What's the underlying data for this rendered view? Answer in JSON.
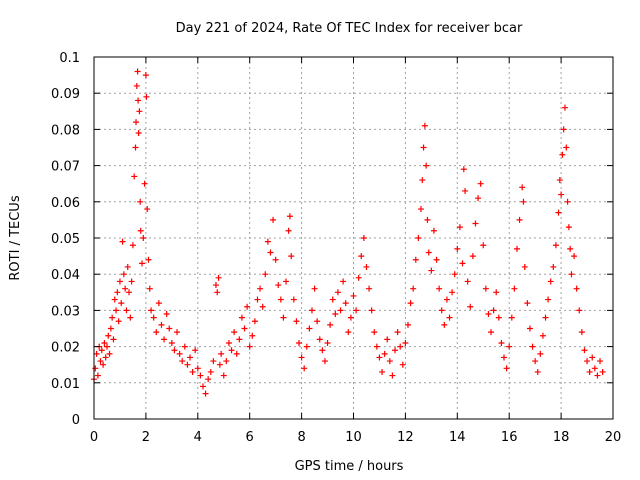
{
  "chart_data": {
    "type": "scatter",
    "title": "Day 221 of 2024, Rate Of TEC Index for receiver bcar",
    "xlabel": "GPS time / hours",
    "ylabel": "ROTI / TECUs",
    "xlim": [
      0,
      20
    ],
    "ylim": [
      0,
      0.1
    ],
    "x_ticks": [
      "0",
      "2",
      "4",
      "6",
      "8",
      "10",
      "12",
      "14",
      "16",
      "18",
      "20"
    ],
    "y_ticks": [
      "0",
      "0.01",
      "0.02",
      "0.03",
      "0.04",
      "0.05",
      "0.06",
      "0.07",
      "0.08",
      "0.09",
      "0.1"
    ],
    "grid": true,
    "marker": "+",
    "color": "#ff0000",
    "series": [
      {
        "points": [
          [
            0.0,
            0.011
          ],
          [
            0.05,
            0.014
          ],
          [
            0.1,
            0.018
          ],
          [
            0.15,
            0.012
          ],
          [
            0.2,
            0.02
          ],
          [
            0.25,
            0.016
          ],
          [
            0.3,
            0.019
          ],
          [
            0.35,
            0.015
          ],
          [
            0.4,
            0.021
          ],
          [
            0.45,
            0.017
          ],
          [
            0.5,
            0.02
          ],
          [
            0.55,
            0.023
          ],
          [
            0.6,
            0.018
          ],
          [
            0.65,
            0.025
          ],
          [
            0.7,
            0.028
          ],
          [
            0.75,
            0.022
          ],
          [
            0.8,
            0.033
          ],
          [
            0.85,
            0.03
          ],
          [
            0.9,
            0.035
          ],
          [
            0.95,
            0.027
          ],
          [
            1.0,
            0.038
          ],
          [
            1.05,
            0.032
          ],
          [
            1.1,
            0.049
          ],
          [
            1.15,
            0.04
          ],
          [
            1.2,
            0.036
          ],
          [
            1.25,
            0.03
          ],
          [
            1.3,
            0.042
          ],
          [
            1.35,
            0.035
          ],
          [
            1.4,
            0.028
          ],
          [
            1.45,
            0.038
          ],
          [
            1.5,
            0.048
          ],
          [
            1.55,
            0.067
          ],
          [
            1.6,
            0.075
          ],
          [
            1.62,
            0.082
          ],
          [
            1.65,
            0.092
          ],
          [
            1.68,
            0.096
          ],
          [
            1.7,
            0.088
          ],
          [
            1.72,
            0.079
          ],
          [
            1.75,
            0.085
          ],
          [
            1.78,
            0.06
          ],
          [
            1.8,
            0.052
          ],
          [
            1.85,
            0.043
          ],
          [
            1.9,
            0.05
          ],
          [
            1.95,
            0.065
          ],
          [
            2.0,
            0.095
          ],
          [
            2.02,
            0.089
          ],
          [
            2.05,
            0.058
          ],
          [
            2.1,
            0.044
          ],
          [
            2.15,
            0.036
          ],
          [
            2.2,
            0.03
          ],
          [
            2.3,
            0.028
          ],
          [
            2.4,
            0.024
          ],
          [
            2.5,
            0.032
          ],
          [
            2.6,
            0.026
          ],
          [
            2.7,
            0.022
          ],
          [
            2.8,
            0.029
          ],
          [
            2.9,
            0.025
          ],
          [
            3.0,
            0.021
          ],
          [
            3.1,
            0.019
          ],
          [
            3.2,
            0.024
          ],
          [
            3.3,
            0.018
          ],
          [
            3.4,
            0.016
          ],
          [
            3.5,
            0.02
          ],
          [
            3.6,
            0.015
          ],
          [
            3.7,
            0.017
          ],
          [
            3.8,
            0.013
          ],
          [
            3.9,
            0.019
          ],
          [
            4.0,
            0.014
          ],
          [
            4.1,
            0.012
          ],
          [
            4.2,
            0.009
          ],
          [
            4.3,
            0.007
          ],
          [
            4.4,
            0.011
          ],
          [
            4.5,
            0.013
          ],
          [
            4.6,
            0.016
          ],
          [
            4.7,
            0.037
          ],
          [
            4.75,
            0.035
          ],
          [
            4.8,
            0.039
          ],
          [
            4.85,
            0.015
          ],
          [
            4.9,
            0.018
          ],
          [
            5.0,
            0.012
          ],
          [
            5.1,
            0.016
          ],
          [
            5.2,
            0.021
          ],
          [
            5.3,
            0.019
          ],
          [
            5.4,
            0.024
          ],
          [
            5.5,
            0.018
          ],
          [
            5.6,
            0.022
          ],
          [
            5.7,
            0.028
          ],
          [
            5.8,
            0.025
          ],
          [
            5.9,
            0.031
          ],
          [
            6.0,
            0.02
          ],
          [
            6.1,
            0.023
          ],
          [
            6.2,
            0.027
          ],
          [
            6.3,
            0.033
          ],
          [
            6.4,
            0.036
          ],
          [
            6.5,
            0.031
          ],
          [
            6.6,
            0.04
          ],
          [
            6.7,
            0.049
          ],
          [
            6.8,
            0.046
          ],
          [
            6.9,
            0.055
          ],
          [
            7.0,
            0.044
          ],
          [
            7.1,
            0.037
          ],
          [
            7.2,
            0.033
          ],
          [
            7.3,
            0.028
          ],
          [
            7.4,
            0.038
          ],
          [
            7.5,
            0.052
          ],
          [
            7.55,
            0.056
          ],
          [
            7.6,
            0.045
          ],
          [
            7.7,
            0.033
          ],
          [
            7.8,
            0.027
          ],
          [
            7.9,
            0.021
          ],
          [
            8.0,
            0.017
          ],
          [
            8.1,
            0.014
          ],
          [
            8.2,
            0.02
          ],
          [
            8.3,
            0.025
          ],
          [
            8.4,
            0.03
          ],
          [
            8.5,
            0.036
          ],
          [
            8.6,
            0.027
          ],
          [
            8.7,
            0.022
          ],
          [
            8.8,
            0.019
          ],
          [
            8.9,
            0.016
          ],
          [
            9.0,
            0.021
          ],
          [
            9.1,
            0.026
          ],
          [
            9.2,
            0.033
          ],
          [
            9.3,
            0.029
          ],
          [
            9.4,
            0.035
          ],
          [
            9.5,
            0.03
          ],
          [
            9.6,
            0.038
          ],
          [
            9.7,
            0.032
          ],
          [
            9.8,
            0.024
          ],
          [
            9.9,
            0.028
          ],
          [
            10.0,
            0.034
          ],
          [
            10.1,
            0.03
          ],
          [
            10.2,
            0.039
          ],
          [
            10.3,
            0.045
          ],
          [
            10.4,
            0.05
          ],
          [
            10.5,
            0.042
          ],
          [
            10.6,
            0.036
          ],
          [
            10.7,
            0.03
          ],
          [
            10.8,
            0.024
          ],
          [
            10.9,
            0.02
          ],
          [
            11.0,
            0.017
          ],
          [
            11.1,
            0.013
          ],
          [
            11.2,
            0.018
          ],
          [
            11.3,
            0.022
          ],
          [
            11.4,
            0.016
          ],
          [
            11.5,
            0.012
          ],
          [
            11.6,
            0.019
          ],
          [
            11.7,
            0.024
          ],
          [
            11.8,
            0.02
          ],
          [
            11.9,
            0.015
          ],
          [
            12.0,
            0.021
          ],
          [
            12.1,
            0.026
          ],
          [
            12.2,
            0.032
          ],
          [
            12.3,
            0.036
          ],
          [
            12.4,
            0.044
          ],
          [
            12.5,
            0.05
          ],
          [
            12.6,
            0.058
          ],
          [
            12.65,
            0.066
          ],
          [
            12.7,
            0.075
          ],
          [
            12.75,
            0.081
          ],
          [
            12.8,
            0.07
          ],
          [
            12.85,
            0.055
          ],
          [
            12.9,
            0.046
          ],
          [
            13.0,
            0.041
          ],
          [
            13.1,
            0.052
          ],
          [
            13.2,
            0.044
          ],
          [
            13.3,
            0.036
          ],
          [
            13.4,
            0.03
          ],
          [
            13.5,
            0.026
          ],
          [
            13.6,
            0.033
          ],
          [
            13.7,
            0.028
          ],
          [
            13.8,
            0.035
          ],
          [
            13.9,
            0.04
          ],
          [
            14.0,
            0.047
          ],
          [
            14.1,
            0.053
          ],
          [
            14.2,
            0.043
          ],
          [
            14.25,
            0.069
          ],
          [
            14.3,
            0.063
          ],
          [
            14.4,
            0.038
          ],
          [
            14.5,
            0.031
          ],
          [
            14.6,
            0.045
          ],
          [
            14.7,
            0.054
          ],
          [
            14.8,
            0.061
          ],
          [
            14.9,
            0.065
          ],
          [
            15.0,
            0.048
          ],
          [
            15.1,
            0.036
          ],
          [
            15.2,
            0.029
          ],
          [
            15.3,
            0.024
          ],
          [
            15.4,
            0.03
          ],
          [
            15.5,
            0.035
          ],
          [
            15.6,
            0.028
          ],
          [
            15.7,
            0.021
          ],
          [
            15.8,
            0.017
          ],
          [
            15.9,
            0.014
          ],
          [
            16.0,
            0.02
          ],
          [
            16.1,
            0.028
          ],
          [
            16.2,
            0.036
          ],
          [
            16.3,
            0.047
          ],
          [
            16.4,
            0.055
          ],
          [
            16.5,
            0.064
          ],
          [
            16.55,
            0.06
          ],
          [
            16.6,
            0.042
          ],
          [
            16.7,
            0.032
          ],
          [
            16.8,
            0.025
          ],
          [
            16.9,
            0.02
          ],
          [
            17.0,
            0.016
          ],
          [
            17.1,
            0.013
          ],
          [
            17.2,
            0.018
          ],
          [
            17.3,
            0.023
          ],
          [
            17.4,
            0.028
          ],
          [
            17.5,
            0.033
          ],
          [
            17.6,
            0.038
          ],
          [
            17.7,
            0.042
          ],
          [
            17.8,
            0.048
          ],
          [
            17.9,
            0.057
          ],
          [
            17.95,
            0.066
          ],
          [
            18.0,
            0.062
          ],
          [
            18.05,
            0.073
          ],
          [
            18.1,
            0.08
          ],
          [
            18.15,
            0.086
          ],
          [
            18.2,
            0.075
          ],
          [
            18.25,
            0.06
          ],
          [
            18.3,
            0.053
          ],
          [
            18.35,
            0.047
          ],
          [
            18.4,
            0.04
          ],
          [
            18.5,
            0.045
          ],
          [
            18.6,
            0.036
          ],
          [
            18.7,
            0.03
          ],
          [
            18.8,
            0.024
          ],
          [
            18.9,
            0.019
          ],
          [
            19.0,
            0.016
          ],
          [
            19.1,
            0.013
          ],
          [
            19.2,
            0.017
          ],
          [
            19.3,
            0.014
          ],
          [
            19.4,
            0.012
          ],
          [
            19.5,
            0.016
          ],
          [
            19.6,
            0.013
          ]
        ]
      }
    ]
  }
}
